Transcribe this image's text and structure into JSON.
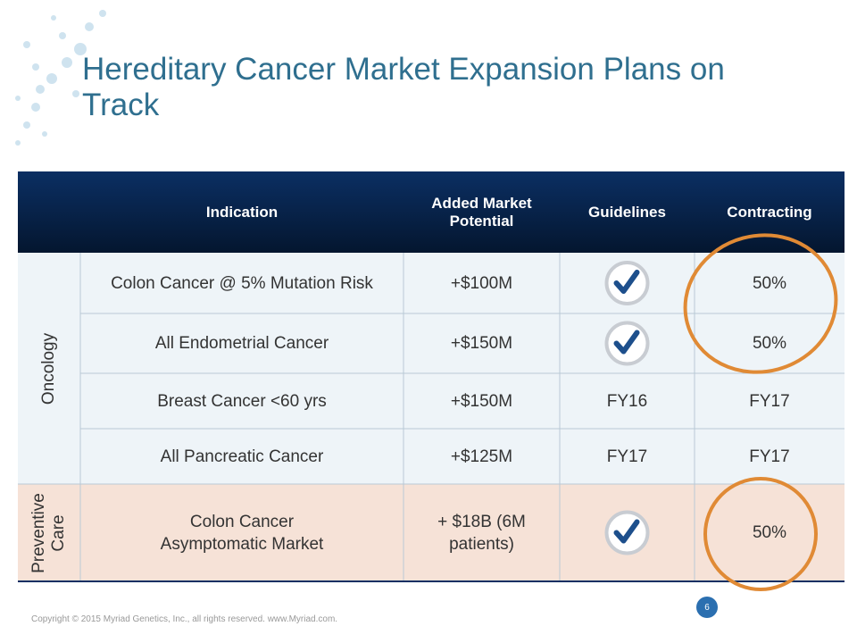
{
  "header": {
    "title": "Hereditary Cancer Market Expansion Plans on Track"
  },
  "table": {
    "columns": [
      "Indication",
      "Added Market Potential",
      "Guidelines",
      "Contracting"
    ],
    "groups": [
      {
        "label": "Oncology",
        "rows": [
          {
            "indication": "Colon Cancer @ 5% Mutation Risk",
            "market": "+$100M",
            "contracting": "50%"
          },
          {
            "indication": "All Endometrial Cancer",
            "market": "+$150M",
            "contracting": "50%"
          },
          {
            "indication": "Breast Cancer <60 yrs",
            "market": "+$150M",
            "guidelines": "FY16",
            "contracting": "FY17"
          },
          {
            "indication": "All Pancreatic Cancer",
            "market": "+$125M",
            "guidelines": "FY17",
            "contracting": "FY17"
          }
        ]
      },
      {
        "label": "Preventive Care",
        "rows": [
          {
            "indication": "Colon Cancer Asymptomatic Market",
            "market": "+ $18B (6M patients)",
            "contracting": "50%"
          }
        ]
      }
    ]
  },
  "footer": {
    "copyright": "Copyright © 2015 Myriad Genetics, Inc., all rights reserved.  www.Myriad.com.",
    "page": "6"
  }
}
